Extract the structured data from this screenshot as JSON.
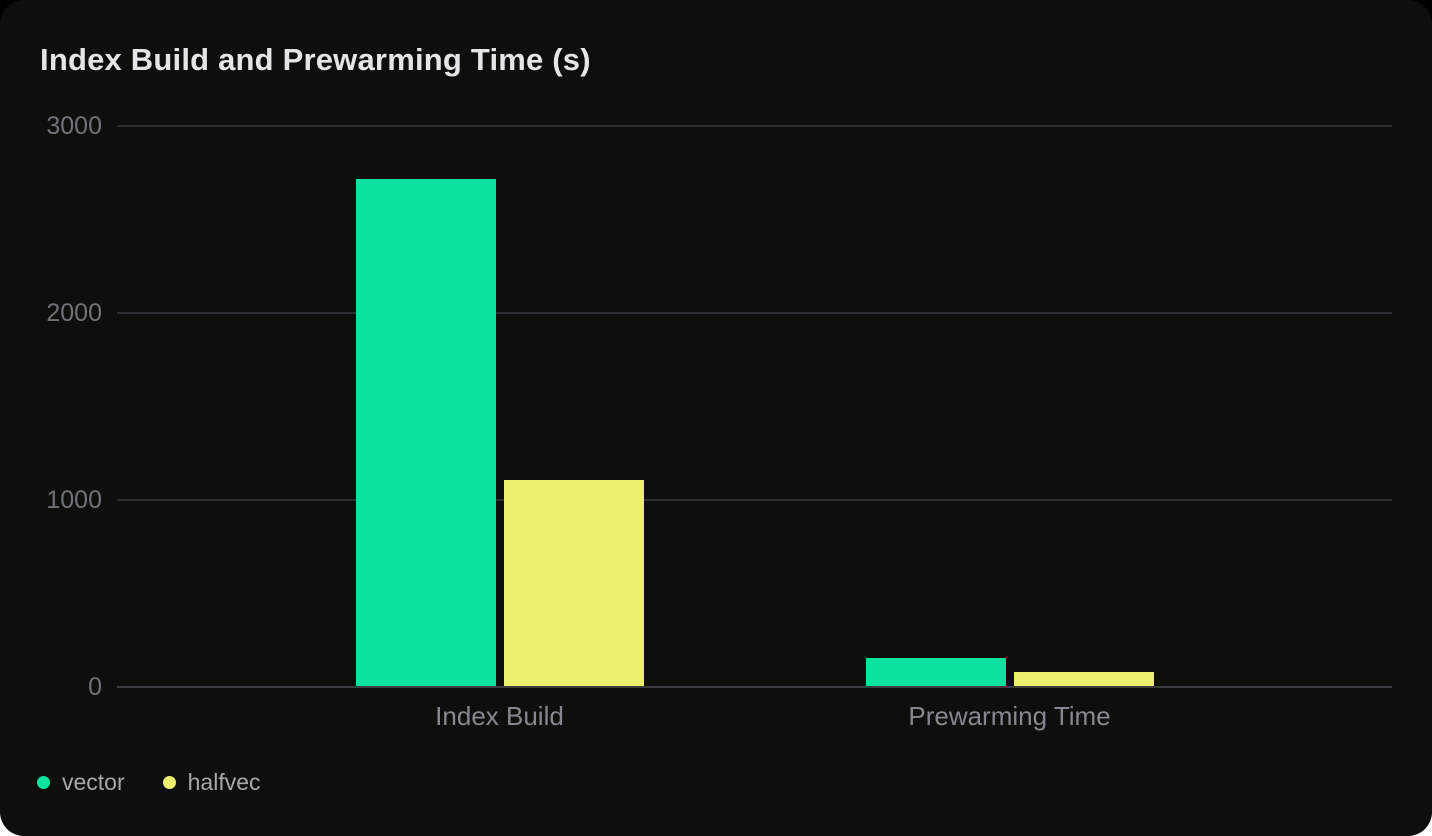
{
  "page": {
    "background_top": "#000000",
    "background_bottom": "#ffffff"
  },
  "card": {
    "background": "#0e0f0d",
    "title": "Index Build and Prewarming Time (s)",
    "title_color": "#e4e5e6"
  },
  "axis": {
    "tick_label_color": "#6e7378",
    "grid_color": "#2d3033",
    "baseline_color": "#3a3d40",
    "category_label_color": "#85888e"
  },
  "legend": {
    "text_color": "#a6a8aa",
    "items": [
      {
        "label": "vector",
        "color": "#0ae29e"
      },
      {
        "label": "halfvec",
        "color": "#edf06f"
      }
    ]
  },
  "chart_data": {
    "type": "bar",
    "title": "Index Build and Prewarming Time (s)",
    "categories": [
      "Index Build",
      "Prewarming Time"
    ],
    "series": [
      {
        "name": "vector",
        "color": "#0ae29e",
        "values": [
          2714,
          154
        ]
      },
      {
        "name": "halfvec",
        "color": "#edf06f",
        "values": [
          1104,
          76
        ]
      }
    ],
    "xlabel": "",
    "ylabel": "",
    "ylim": [
      0,
      3000
    ],
    "yticks": [
      0,
      1000,
      2000,
      3000
    ],
    "grid": true,
    "legend_position": "bottom-left"
  }
}
